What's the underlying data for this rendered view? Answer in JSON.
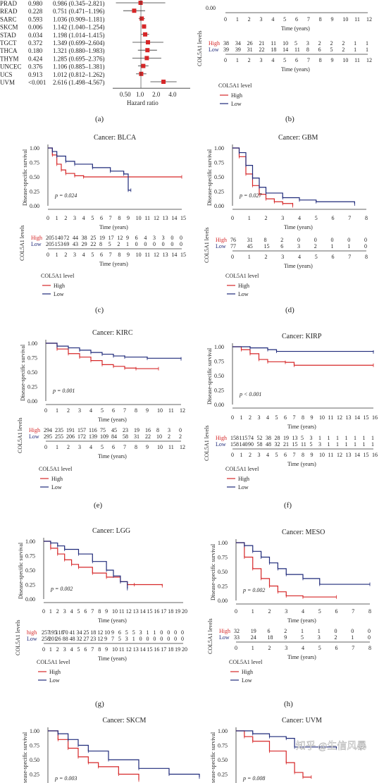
{
  "forest": {
    "rows": [
      {
        "name": "PRAD",
        "p": "0.980",
        "hr": "0.986 (0.345–2.821)",
        "v": 0.986,
        "lo": 0.345,
        "hi": 2.821
      },
      {
        "name": "READ",
        "p": "0.228",
        "hr": "0.751 (0.471–1.196)",
        "v": 0.751,
        "lo": 0.471,
        "hi": 1.196
      },
      {
        "name": "SARC",
        "p": "0.593",
        "hr": "1.036 (0.909–1.181)",
        "v": 1.036,
        "lo": 0.909,
        "hi": 1.181
      },
      {
        "name": "SKCM",
        "p": "0.006",
        "hr": "1.142 (1.040–1.254)",
        "v": 1.142,
        "lo": 1.04,
        "hi": 1.254
      },
      {
        "name": "STAD",
        "p": "0.034",
        "hr": "1.198 (1.014–1.415)",
        "v": 1.198,
        "lo": 1.014,
        "hi": 1.415
      },
      {
        "name": "TGCT",
        "p": "0.372",
        "hr": "1.349 (0.699–2.604)",
        "v": 1.349,
        "lo": 0.699,
        "hi": 2.604
      },
      {
        "name": "THCA",
        "p": "0.180",
        "hr": "1.321 (0.880–1.983)",
        "v": 1.321,
        "lo": 0.88,
        "hi": 1.983
      },
      {
        "name": "THYM",
        "p": "0.424",
        "hr": "1.285 (0.695–2.376)",
        "v": 1.285,
        "lo": 0.695,
        "hi": 2.376
      },
      {
        "name": "UNCEC",
        "p": "0.376",
        "hr": "1.106 (0.885–1.381)",
        "v": 1.106,
        "lo": 0.885,
        "hi": 1.381
      },
      {
        "name": "UCS",
        "p": "0.913",
        "hr": "1.012 (0.812–1.262)",
        "v": 1.012,
        "lo": 0.812,
        "hi": 1.262
      },
      {
        "name": "UVM",
        "p": "<0.001",
        "hr": "2.616 (1.498–4.567)",
        "v": 2.616,
        "lo": 1.498,
        "hi": 4.567
      }
    ],
    "ticks": [
      "0.50",
      "1.0",
      "2.0",
      "4.0"
    ],
    "xlabel": "Hazard ratio",
    "caption": "(a)"
  },
  "legend_title": "COL5A1 level",
  "legend_high": "High",
  "legend_low": "Low",
  "ylabel": "Disease-specific survival",
  "xlabel": "Time (years)",
  "risk_label": "COL5A1 levels",
  "chart_data": [
    {
      "id": "b",
      "type": "line",
      "caption": "(b)",
      "title": "",
      "p": "",
      "xmax": 12,
      "high": [],
      "low": [],
      "yticks": [
        "0.00"
      ],
      "risk": {
        "high": [
          "38",
          "34",
          "26",
          "21",
          "11",
          "10",
          "5",
          "3",
          "2",
          "2",
          "2",
          "1",
          "1"
        ],
        "low": [
          "39",
          "39",
          "31",
          "22",
          "18",
          "14",
          "11",
          "8",
          "6",
          "5",
          "2",
          "1",
          "1"
        ],
        "high_label": "High",
        "low_label": "Low"
      }
    },
    {
      "id": "c",
      "type": "line",
      "caption": "(c)",
      "title": "Cancer: BLCA",
      "p": "p = 0.024",
      "xmax": 15,
      "high": [
        [
          0,
          1
        ],
        [
          0.5,
          0.88
        ],
        [
          1,
          0.72
        ],
        [
          1.5,
          0.62
        ],
        [
          2,
          0.56
        ],
        [
          3,
          0.52
        ],
        [
          4,
          0.5
        ],
        [
          15,
          0.5
        ]
      ],
      "low": [
        [
          0,
          1
        ],
        [
          0.5,
          0.94
        ],
        [
          1,
          0.86
        ],
        [
          2,
          0.77
        ],
        [
          3,
          0.72
        ],
        [
          5,
          0.66
        ],
        [
          7,
          0.6
        ],
        [
          8.5,
          0.55
        ],
        [
          9,
          0.27
        ],
        [
          9.3,
          0.27
        ]
      ],
      "yticks": [
        "0.00",
        "0.25",
        "0.50",
        "0.75",
        "1.00"
      ],
      "risk": {
        "high": [
          "205",
          "140",
          "72",
          "44",
          "38",
          "25",
          "19",
          "17",
          "12",
          "9",
          "6",
          "4",
          "3",
          "3",
          "0",
          "0"
        ],
        "low": [
          "205",
          "153",
          "69",
          "43",
          "29",
          "22",
          "8",
          "5",
          "2",
          "1",
          "0",
          "0",
          "0",
          "0",
          "0",
          "0"
        ],
        "high_label": "High",
        "low_label": "Low"
      }
    },
    {
      "id": "d",
      "type": "line",
      "caption": "(d)",
      "title": "Cancer: GBM",
      "p": "p = 0.027",
      "xmax": 8,
      "high": [
        [
          0,
          1
        ],
        [
          0.4,
          0.85
        ],
        [
          0.8,
          0.55
        ],
        [
          1.2,
          0.35
        ],
        [
          1.6,
          0.2
        ],
        [
          2,
          0.12
        ],
        [
          2.5,
          0.07
        ],
        [
          3,
          0.04
        ],
        [
          3.6,
          0.02
        ],
        [
          3.6,
          0
        ]
      ],
      "low": [
        [
          0,
          1
        ],
        [
          0.4,
          0.92
        ],
        [
          0.8,
          0.7
        ],
        [
          1.2,
          0.48
        ],
        [
          1.6,
          0.32
        ],
        [
          2,
          0.22
        ],
        [
          3,
          0.14
        ],
        [
          4,
          0.1
        ],
        [
          5,
          0.07
        ],
        [
          7.3,
          0.03
        ]
      ],
      "yticks": [
        "0.00",
        "0.25",
        "0.50",
        "0.75",
        "1.00"
      ],
      "risk": {
        "high": [
          "76",
          "31",
          "8",
          "2",
          "0",
          "0",
          "0",
          "0",
          "0"
        ],
        "low": [
          "77",
          "45",
          "15",
          "6",
          "3",
          "2",
          "1",
          "1",
          "0"
        ],
        "high_label": "High",
        "low_label": "Low"
      }
    },
    {
      "id": "e",
      "type": "line",
      "caption": "(e)",
      "title": "Cancer: KIRC",
      "p": "p = 0.001",
      "xmax": 12,
      "high": [
        [
          0,
          1
        ],
        [
          1,
          0.9
        ],
        [
          2,
          0.82
        ],
        [
          3,
          0.76
        ],
        [
          4,
          0.7
        ],
        [
          5,
          0.63
        ],
        [
          6,
          0.6
        ],
        [
          7,
          0.57
        ],
        [
          8,
          0.56
        ],
        [
          10,
          0.56
        ]
      ],
      "low": [
        [
          0,
          1
        ],
        [
          1,
          0.95
        ],
        [
          2,
          0.92
        ],
        [
          3,
          0.88
        ],
        [
          4,
          0.84
        ],
        [
          5,
          0.81
        ],
        [
          6,
          0.78
        ],
        [
          7,
          0.76
        ],
        [
          9,
          0.74
        ],
        [
          12,
          0.73
        ]
      ],
      "yticks": [
        "0.00",
        "0.25",
        "0.50",
        "0.75",
        "1.00"
      ],
      "risk": {
        "high": [
          "294",
          "235",
          "191",
          "157",
          "116",
          "75",
          "45",
          "23",
          "19",
          "16",
          "8",
          "3",
          "0"
        ],
        "low": [
          "295",
          "255",
          "206",
          "172",
          "139",
          "109",
          "84",
          "58",
          "31",
          "22",
          "10",
          "2",
          "2"
        ],
        "high_label": "High",
        "low_label": "Low"
      }
    },
    {
      "id": "f",
      "type": "line",
      "caption": "(f)",
      "title": "Cancer: KIRP",
      "p": "p < 0.001",
      "xmax": 16,
      "high": [
        [
          0,
          1
        ],
        [
          1,
          0.95
        ],
        [
          2,
          0.88
        ],
        [
          3,
          0.78
        ],
        [
          4,
          0.74
        ],
        [
          6,
          0.73
        ],
        [
          7,
          0.68
        ],
        [
          16,
          0.68
        ]
      ],
      "low": [
        [
          0,
          1
        ],
        [
          2,
          0.98
        ],
        [
          4,
          0.95
        ],
        [
          5,
          0.92
        ],
        [
          16,
          0.91
        ]
      ],
      "yticks": [
        "0.00",
        "0.25",
        "0.50",
        "0.75",
        "1.00"
      ],
      "risk": {
        "high": [
          "158",
          "115",
          "74",
          "52",
          "38",
          "28",
          "19",
          "13",
          "5",
          "3",
          "1",
          "1",
          "1",
          "1",
          "1",
          "1",
          "1"
        ],
        "low": [
          "158",
          "140",
          "90",
          "58",
          "48",
          "32",
          "21",
          "15",
          "11",
          "5",
          "3",
          "1",
          "1",
          "1",
          "1",
          "1",
          "1"
        ],
        "high_label": "High",
        "low_label": "Low"
      }
    },
    {
      "id": "g",
      "type": "line",
      "caption": "(g)",
      "title": "Cancer: LGG",
      "p": "p = 0.002",
      "xmax": 20,
      "high": [
        [
          0,
          1
        ],
        [
          1,
          0.88
        ],
        [
          2,
          0.78
        ],
        [
          3,
          0.68
        ],
        [
          4,
          0.6
        ],
        [
          5,
          0.55
        ],
        [
          7,
          0.45
        ],
        [
          9,
          0.38
        ],
        [
          11,
          0.3
        ],
        [
          12,
          0.25
        ],
        [
          13,
          0.25
        ],
        [
          17,
          0.23
        ]
      ],
      "low": [
        [
          0,
          1
        ],
        [
          1,
          0.97
        ],
        [
          2,
          0.92
        ],
        [
          3,
          0.86
        ],
        [
          5,
          0.78
        ],
        [
          7,
          0.65
        ],
        [
          9,
          0.5
        ],
        [
          10,
          0.4
        ],
        [
          11,
          0.3
        ],
        [
          12,
          0.18
        ]
      ],
      "yticks": [
        "0.00",
        "0.25",
        "0.50",
        "0.75",
        "1.00"
      ],
      "risk": {
        "high": [
          "257",
          "195",
          "118",
          "70",
          "41",
          "34",
          "25",
          "18",
          "12",
          "10",
          "9",
          "6",
          "5",
          "5",
          "3",
          "1",
          "1",
          "0",
          "0",
          "0",
          "0"
        ],
        "low": [
          "258",
          "201",
          "26",
          "88",
          "48",
          "32",
          "27",
          "23",
          "12",
          "9",
          "7",
          "5",
          "3",
          "1",
          "0",
          "0",
          "0",
          "0",
          "0",
          "0",
          "0"
        ],
        "high_label": "high",
        "low_label": "Low"
      }
    },
    {
      "id": "h",
      "type": "line",
      "caption": "(h)",
      "title": "Cancer: MESO",
      "p": "p = 0.002",
      "xmax": 8,
      "high": [
        [
          0,
          1
        ],
        [
          0.5,
          0.75
        ],
        [
          1,
          0.55
        ],
        [
          1.5,
          0.38
        ],
        [
          2,
          0.25
        ],
        [
          2.5,
          0.15
        ],
        [
          3,
          0.08
        ],
        [
          4,
          0.06
        ],
        [
          6,
          0.06
        ]
      ],
      "low": [
        [
          0,
          1
        ],
        [
          0.5,
          0.95
        ],
        [
          1,
          0.85
        ],
        [
          1.5,
          0.75
        ],
        [
          2,
          0.65
        ],
        [
          2.5,
          0.55
        ],
        [
          3,
          0.45
        ],
        [
          4,
          0.38
        ],
        [
          5,
          0.28
        ],
        [
          8,
          0.28
        ]
      ],
      "yticks": [
        "0.00",
        "0.25",
        "0.50",
        "0.75",
        "1.00"
      ],
      "risk": {
        "high": [
          "32",
          "19",
          "6",
          "2",
          "1",
          "1",
          "0",
          "0",
          "0"
        ],
        "low": [
          "33",
          "24",
          "18",
          "9",
          "5",
          "3",
          "2",
          "1",
          "0"
        ],
        "high_label": "High",
        "low_label": "Low"
      }
    },
    {
      "id": "i",
      "type": "line",
      "caption": "",
      "title": "Cancer: SKCM",
      "p": "p = 0.003",
      "xmax": 30,
      "high": [
        [
          0,
          1
        ],
        [
          2,
          0.85
        ],
        [
          4,
          0.7
        ],
        [
          6,
          0.55
        ],
        [
          8,
          0.45
        ],
        [
          10,
          0.38
        ],
        [
          14,
          0.25
        ],
        [
          18,
          0.15
        ]
      ],
      "low": [
        [
          0,
          1
        ],
        [
          2,
          0.95
        ],
        [
          4,
          0.85
        ],
        [
          6,
          0.75
        ],
        [
          8,
          0.65
        ],
        [
          12,
          0.5
        ],
        [
          18,
          0.35
        ],
        [
          24,
          0.25
        ],
        [
          30,
          0.2
        ]
      ],
      "yticks": [
        "0.25",
        "0.50",
        "0.75",
        "1.00"
      ],
      "risk": null
    },
    {
      "id": "j",
      "type": "line",
      "caption": "",
      "title": "Cancer: UVM",
      "p": "p = 0.008",
      "xmax": 8,
      "high": [
        [
          0,
          1
        ],
        [
          0.5,
          0.9
        ],
        [
          1,
          0.82
        ],
        [
          2,
          0.65
        ],
        [
          3,
          0.45
        ],
        [
          3.5,
          0.28
        ],
        [
          4,
          0.2
        ],
        [
          4.5,
          0.2
        ]
      ],
      "low": [
        [
          0,
          1
        ],
        [
          1,
          0.95
        ],
        [
          2,
          0.9
        ],
        [
          3,
          0.87
        ],
        [
          3.5,
          0.72
        ],
        [
          5,
          0.72
        ],
        [
          6,
          0.7
        ]
      ],
      "yticks": [
        "0.25",
        "0.50",
        "0.75",
        "1.00"
      ],
      "risk": null
    }
  ],
  "watermark": "知乎 @生信风暴",
  "colors": {
    "high": "#d62728",
    "low": "#1f2a7a"
  }
}
